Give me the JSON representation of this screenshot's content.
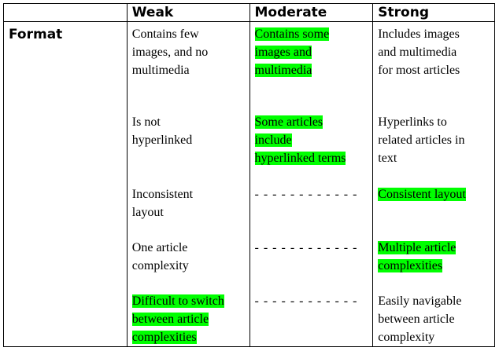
{
  "header": {
    "blank": "",
    "weak": "Weak",
    "moderate": "Moderate",
    "strong": "Strong"
  },
  "row_label": "Format",
  "weak": {
    "i0": [
      "Contains few",
      "images, and no",
      "multimedia"
    ],
    "i1": [
      "Is not",
      "hyperlinked"
    ],
    "i2": [
      "Inconsistent",
      "layout"
    ],
    "i3": [
      "One article",
      "complexity"
    ],
    "i4": [
      "Difficult to switch",
      "between article",
      "complexities"
    ]
  },
  "moderate": {
    "i0": [
      "Contains some",
      "images and",
      "multimedia"
    ],
    "i1": [
      "Some articles",
      "include",
      "hyperlinked terms"
    ],
    "i2": "- - - - - - - - - - - -",
    "i3": "- - - - - - - - - - - -",
    "i4": "- - - - - - - - - - - -"
  },
  "strong": {
    "i0": [
      "Includes images",
      "and multimedia",
      "for most articles"
    ],
    "i1": [
      "Hyperlinks to",
      "related articles in",
      "text"
    ],
    "i2": [
      "Consistent layout"
    ],
    "i3": [
      "Multiple article",
      "complexities"
    ],
    "i4": [
      "Easily navigable",
      "between article",
      "complexity"
    ]
  },
  "colors": {
    "highlight": "#00ff00",
    "border": "#000000"
  }
}
